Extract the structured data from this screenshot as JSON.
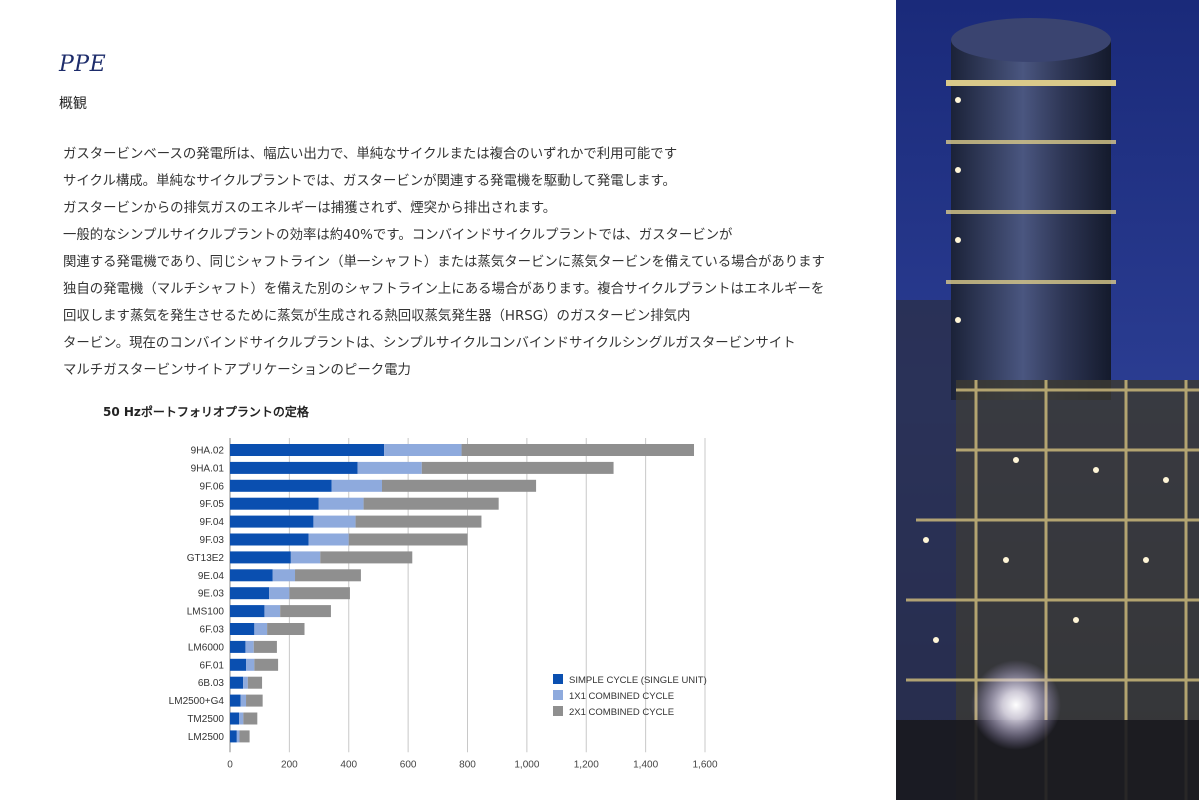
{
  "header": {
    "brand": "PPE",
    "subtitle": "概観"
  },
  "body": {
    "lines": [
      "ガスタービンベースの発電所は、幅広い出力で、単純なサイクルまたは複合のいずれかで利用可能です",
      "サイクル構成。単純なサイクルプラントでは、ガスタービンが関連する発電機を駆動して発電します。",
      "ガスタービンからの排気ガスのエネルギーは捕獲されず、煙突から排出されます。",
      "一般的なシンプルサイクルプラントの効率は約40%です。コンバインドサイクルプラントでは、ガスタービンが",
      "関連する発電機であり、同じシャフトライン（単一シャフト）または蒸気タービンに蒸気タービンを備えている場合があります",
      "独自の発電機（マルチシャフト）を備えた別のシャフトライン上にある場合があります。複合サイクルプラントはエネルギーを",
      "回収します蒸気を発生させるために蒸気が生成される熱回収蒸気発生器（HRSG）のガスタービン排気内",
      "タービン。現在のコンバインドサイクルプラントは、シンプルサイクルコンバインドサイクルシングルガスタービンサイト",
      "マルチガスタービンサイトアプリケーションのピーク電力"
    ]
  },
  "chart_data": {
    "type": "bar",
    "orientation": "horizontal",
    "stacked": true,
    "title": "50 Hzポートフォリオプラントの定格",
    "categories": [
      "9HA.02",
      "9HA.01",
      "9F.06",
      "9F.05",
      "9F.04",
      "9F.03",
      "GT13E2",
      "9E.04",
      "9E.03",
      "LMS100",
      "6F.03",
      "LM6000",
      "6F.01",
      "6B.03",
      "LM2500+G4",
      "TM2500",
      "LM2500"
    ],
    "series": [
      {
        "name": "SIMPLE CYCLE (SINGLE UNIT)",
        "color": "#0a4fb0",
        "values": [
          519,
          430,
          342,
          299,
          281,
          265,
          205,
          144,
          132,
          116,
          82,
          52,
          54,
          44,
          36,
          31,
          23
        ]
      },
      {
        "name": "1X1 COMBINED CYCLE",
        "color": "#8eaadd",
        "values": [
          261,
          216,
          170,
          151,
          142,
          135,
          99,
          75,
          68,
          53,
          43,
          28,
          28,
          16,
          18,
          14,
          9
        ]
      },
      {
        "name": "2X1 COMBINED CYCLE",
        "color": "#8f8f8f",
        "values": [
          783,
          646,
          519,
          455,
          424,
          400,
          310,
          222,
          204,
          171,
          126,
          78,
          80,
          48,
          56,
          47,
          34
        ]
      }
    ],
    "xticks": [
      "0",
      "200",
      "400",
      "600",
      "800",
      "1,000",
      "1,200",
      "1,400",
      "1,600"
    ],
    "xlim": [
      0,
      1600
    ],
    "grid": true,
    "legend_position": "bottom-right"
  },
  "photo": {
    "description_icon": "power-plant-night-photo"
  }
}
